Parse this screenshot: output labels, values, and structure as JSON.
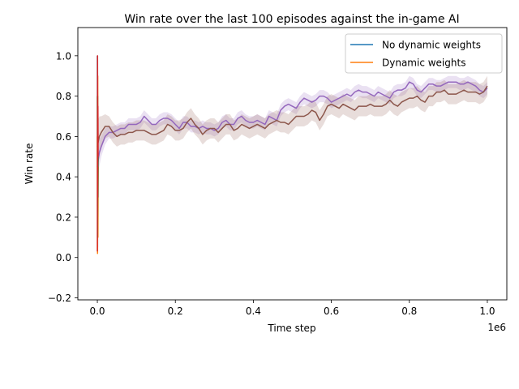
{
  "chart_data": {
    "type": "line",
    "title": "Win rate over the last 100 episodes against the in-game AI",
    "xlabel": "Time step",
    "ylabel": "Win rate",
    "x_offset_label": "1e6",
    "xlim": [
      -0.05,
      1.05
    ],
    "ylim": [
      -0.21,
      1.14
    ],
    "x_ticks": [
      0.0,
      0.2,
      0.4,
      0.6,
      0.8,
      1.0
    ],
    "x_tick_labels": [
      "0.0",
      "0.2",
      "0.4",
      "0.6",
      "0.8",
      "1.0"
    ],
    "y_ticks": [
      -0.2,
      0.0,
      0.2,
      0.4,
      0.6,
      0.8,
      1.0
    ],
    "y_tick_labels": [
      "−0.2",
      "0.0",
      "0.2",
      "0.4",
      "0.6",
      "0.8",
      "1.0"
    ],
    "grid": false,
    "legend_position": "top-right",
    "legend": [
      {
        "name": "No dynamic weights",
        "color": "#1f77b4"
      },
      {
        "name": "Dynamic weights",
        "color": "#ff7f0e"
      }
    ],
    "series": [
      {
        "color": "#9467bd",
        "band_color": "#9467bd",
        "x": [
          0.0,
          0.005,
          0.01,
          0.02,
          0.03,
          0.04,
          0.05,
          0.06,
          0.07,
          0.08,
          0.09,
          0.1,
          0.11,
          0.12,
          0.13,
          0.14,
          0.15,
          0.16,
          0.17,
          0.18,
          0.19,
          0.2,
          0.21,
          0.22,
          0.23,
          0.24,
          0.25,
          0.26,
          0.27,
          0.28,
          0.29,
          0.3,
          0.31,
          0.32,
          0.33,
          0.34,
          0.35,
          0.36,
          0.37,
          0.38,
          0.39,
          0.4,
          0.41,
          0.42,
          0.43,
          0.44,
          0.45,
          0.46,
          0.47,
          0.48,
          0.49,
          0.5,
          0.51,
          0.52,
          0.53,
          0.54,
          0.55,
          0.56,
          0.57,
          0.58,
          0.59,
          0.6,
          0.61,
          0.62,
          0.63,
          0.64,
          0.65,
          0.66,
          0.67,
          0.68,
          0.69,
          0.7,
          0.71,
          0.72,
          0.73,
          0.74,
          0.75,
          0.76,
          0.77,
          0.78,
          0.79,
          0.8,
          0.81,
          0.82,
          0.83,
          0.84,
          0.85,
          0.86,
          0.87,
          0.88,
          0.89,
          0.9,
          0.91,
          0.92,
          0.93,
          0.94,
          0.95,
          0.96,
          0.97,
          0.98,
          0.99,
          1.0
        ],
        "y": [
          0.45,
          0.52,
          0.55,
          0.6,
          0.62,
          0.62,
          0.63,
          0.64,
          0.64,
          0.66,
          0.66,
          0.66,
          0.67,
          0.7,
          0.68,
          0.66,
          0.66,
          0.68,
          0.69,
          0.69,
          0.68,
          0.66,
          0.64,
          0.67,
          0.67,
          0.65,
          0.65,
          0.64,
          0.65,
          0.64,
          0.64,
          0.63,
          0.64,
          0.67,
          0.68,
          0.66,
          0.66,
          0.69,
          0.7,
          0.68,
          0.67,
          0.67,
          0.68,
          0.67,
          0.66,
          0.7,
          0.69,
          0.68,
          0.73,
          0.75,
          0.76,
          0.75,
          0.74,
          0.77,
          0.79,
          0.78,
          0.77,
          0.78,
          0.8,
          0.8,
          0.79,
          0.77,
          0.78,
          0.79,
          0.8,
          0.81,
          0.8,
          0.82,
          0.83,
          0.82,
          0.82,
          0.81,
          0.8,
          0.82,
          0.81,
          0.8,
          0.79,
          0.82,
          0.83,
          0.83,
          0.84,
          0.87,
          0.86,
          0.83,
          0.82,
          0.84,
          0.86,
          0.86,
          0.85,
          0.85,
          0.86,
          0.87,
          0.87,
          0.87,
          0.86,
          0.86,
          0.87,
          0.86,
          0.85,
          0.83,
          0.82,
          0.84
        ],
        "band": [
          0.09,
          0.07,
          0.05,
          0.04,
          0.03,
          0.03,
          0.03,
          0.03,
          0.03,
          0.03,
          0.03,
          0.03,
          0.03,
          0.03,
          0.03,
          0.03,
          0.03,
          0.03,
          0.03,
          0.03,
          0.03,
          0.03,
          0.03,
          0.03,
          0.03,
          0.03,
          0.03,
          0.03,
          0.03,
          0.03,
          0.03,
          0.03,
          0.03,
          0.03,
          0.03,
          0.03,
          0.03,
          0.03,
          0.03,
          0.03,
          0.03,
          0.03,
          0.03,
          0.03,
          0.03,
          0.03,
          0.03,
          0.03,
          0.03,
          0.03,
          0.03,
          0.03,
          0.03,
          0.03,
          0.03,
          0.03,
          0.03,
          0.03,
          0.03,
          0.03,
          0.03,
          0.03,
          0.03,
          0.03,
          0.03,
          0.03,
          0.03,
          0.03,
          0.03,
          0.03,
          0.03,
          0.03,
          0.03,
          0.03,
          0.03,
          0.03,
          0.03,
          0.03,
          0.03,
          0.03,
          0.03,
          0.03,
          0.03,
          0.03,
          0.03,
          0.03,
          0.03,
          0.03,
          0.03,
          0.03,
          0.03,
          0.03,
          0.03,
          0.03,
          0.03,
          0.03,
          0.03,
          0.03,
          0.03,
          0.03,
          0.03,
          0.03
        ]
      },
      {
        "color": "#8c564b",
        "band_color": "#8c564b",
        "x": [
          0.0,
          0.005,
          0.01,
          0.02,
          0.03,
          0.04,
          0.05,
          0.06,
          0.07,
          0.08,
          0.09,
          0.1,
          0.11,
          0.12,
          0.13,
          0.14,
          0.15,
          0.16,
          0.17,
          0.18,
          0.19,
          0.2,
          0.21,
          0.22,
          0.23,
          0.24,
          0.25,
          0.26,
          0.27,
          0.28,
          0.29,
          0.3,
          0.31,
          0.32,
          0.33,
          0.34,
          0.35,
          0.36,
          0.37,
          0.38,
          0.39,
          0.4,
          0.41,
          0.42,
          0.43,
          0.44,
          0.45,
          0.46,
          0.47,
          0.48,
          0.49,
          0.5,
          0.51,
          0.52,
          0.53,
          0.54,
          0.55,
          0.56,
          0.57,
          0.58,
          0.59,
          0.6,
          0.61,
          0.62,
          0.63,
          0.64,
          0.65,
          0.66,
          0.67,
          0.68,
          0.69,
          0.7,
          0.71,
          0.72,
          0.73,
          0.74,
          0.75,
          0.76,
          0.77,
          0.78,
          0.79,
          0.8,
          0.81,
          0.82,
          0.83,
          0.84,
          0.85,
          0.86,
          0.87,
          0.88,
          0.89,
          0.9,
          0.91,
          0.92,
          0.93,
          0.94,
          0.95,
          0.96,
          0.97,
          0.98,
          0.99,
          1.0
        ],
        "y": [
          0.55,
          0.6,
          0.62,
          0.65,
          0.65,
          0.62,
          0.6,
          0.61,
          0.61,
          0.62,
          0.62,
          0.63,
          0.63,
          0.63,
          0.62,
          0.61,
          0.61,
          0.62,
          0.63,
          0.66,
          0.65,
          0.63,
          0.63,
          0.64,
          0.67,
          0.69,
          0.66,
          0.64,
          0.61,
          0.63,
          0.64,
          0.64,
          0.62,
          0.64,
          0.66,
          0.66,
          0.63,
          0.64,
          0.66,
          0.65,
          0.64,
          0.65,
          0.66,
          0.65,
          0.64,
          0.66,
          0.67,
          0.68,
          0.67,
          0.67,
          0.66,
          0.68,
          0.7,
          0.7,
          0.7,
          0.71,
          0.73,
          0.72,
          0.68,
          0.71,
          0.75,
          0.76,
          0.75,
          0.74,
          0.76,
          0.75,
          0.74,
          0.73,
          0.75,
          0.75,
          0.75,
          0.76,
          0.75,
          0.75,
          0.75,
          0.76,
          0.78,
          0.76,
          0.75,
          0.77,
          0.78,
          0.79,
          0.79,
          0.8,
          0.78,
          0.77,
          0.8,
          0.8,
          0.82,
          0.82,
          0.83,
          0.81,
          0.81,
          0.81,
          0.82,
          0.83,
          0.82,
          0.82,
          0.82,
          0.81,
          0.82,
          0.85
        ],
        "band": [
          0.12,
          0.1,
          0.08,
          0.06,
          0.05,
          0.05,
          0.05,
          0.05,
          0.05,
          0.05,
          0.05,
          0.05,
          0.05,
          0.05,
          0.05,
          0.05,
          0.05,
          0.05,
          0.05,
          0.05,
          0.05,
          0.05,
          0.05,
          0.05,
          0.05,
          0.05,
          0.05,
          0.05,
          0.05,
          0.05,
          0.05,
          0.05,
          0.05,
          0.05,
          0.05,
          0.05,
          0.05,
          0.05,
          0.05,
          0.05,
          0.05,
          0.05,
          0.05,
          0.05,
          0.05,
          0.05,
          0.05,
          0.05,
          0.05,
          0.05,
          0.05,
          0.05,
          0.05,
          0.05,
          0.05,
          0.05,
          0.05,
          0.05,
          0.05,
          0.05,
          0.05,
          0.05,
          0.05,
          0.05,
          0.05,
          0.05,
          0.05,
          0.05,
          0.05,
          0.05,
          0.05,
          0.05,
          0.05,
          0.05,
          0.05,
          0.05,
          0.05,
          0.05,
          0.05,
          0.05,
          0.05,
          0.05,
          0.05,
          0.05,
          0.05,
          0.05,
          0.05,
          0.05,
          0.05,
          0.05,
          0.05,
          0.05,
          0.05,
          0.05,
          0.05,
          0.05,
          0.05,
          0.05,
          0.05,
          0.05,
          0.05,
          0.05
        ]
      },
      {
        "color": "#1f77b4",
        "x": [
          0.0,
          0.0005,
          0.001,
          0.0015,
          0.002
        ],
        "y": [
          1.0,
          0.05,
          0.8,
          0.2,
          0.5
        ]
      },
      {
        "color": "#ff7f0e",
        "x": [
          0.0,
          0.0005,
          0.001,
          0.0015,
          0.002
        ],
        "y": [
          0.6,
          0.02,
          0.9,
          0.1,
          0.45
        ]
      },
      {
        "color": "#2ca02c",
        "x": [
          0.0,
          0.0005,
          0.001,
          0.0015,
          0.002
        ],
        "y": [
          0.8,
          0.1,
          0.7,
          0.3,
          0.5
        ]
      },
      {
        "color": "#d62728",
        "x": [
          0.0,
          0.0005,
          0.001,
          0.0015,
          0.002
        ],
        "y": [
          0.03,
          1.0,
          0.3,
          0.75,
          0.5
        ]
      }
    ]
  }
}
